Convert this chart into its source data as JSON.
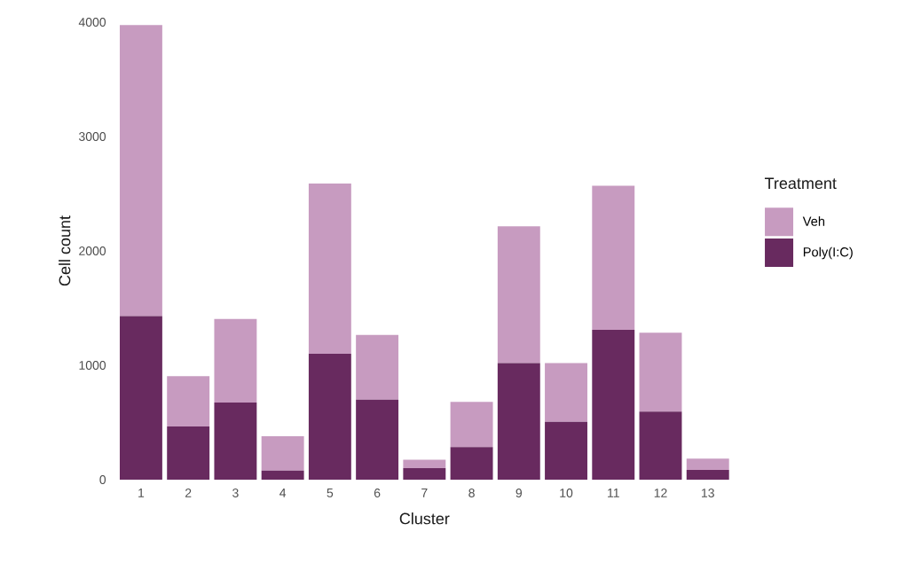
{
  "chart_data": {
    "type": "bar",
    "stacked": true,
    "xlabel": "Cluster",
    "ylabel": "Cell count",
    "legend_title": "Treatment",
    "legend": "right",
    "categories": [
      "1",
      "2",
      "3",
      "4",
      "5",
      "6",
      "7",
      "8",
      "9",
      "10",
      "11",
      "12",
      "13"
    ],
    "series": [
      {
        "name": "Poly(I:C)",
        "color": "#682a5f",
        "values": [
          1430,
          465,
          675,
          80,
          1100,
          700,
          100,
          285,
          1020,
          505,
          1310,
          595,
          85
        ]
      },
      {
        "name": "Veh",
        "color": "#c79bc0",
        "values": [
          2545,
          440,
          730,
          300,
          1490,
          565,
          75,
          395,
          1195,
          515,
          1260,
          690,
          100
        ]
      }
    ],
    "ylim": [
      0,
      4000
    ],
    "yticks": [
      0,
      1000,
      2000,
      3000,
      4000
    ]
  }
}
